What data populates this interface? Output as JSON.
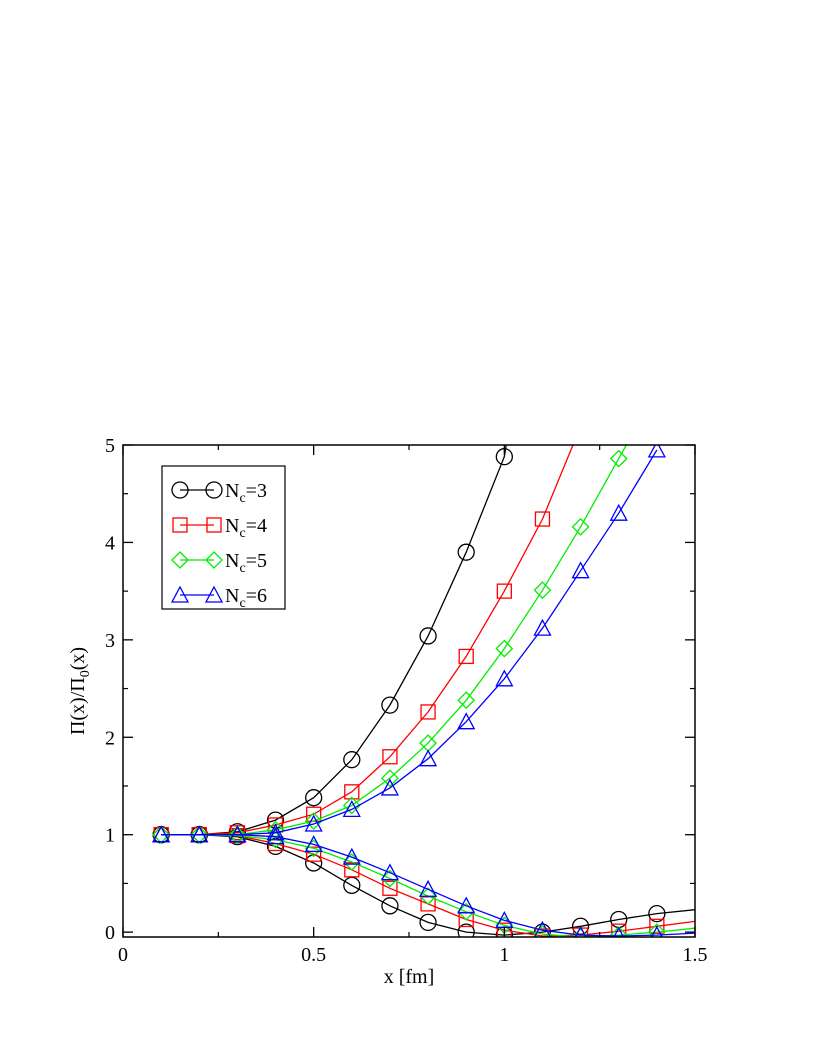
{
  "chart_data": {
    "type": "line",
    "title": "",
    "xlabel": "x [fm]",
    "ylabel": "Π(x)/Π0(x)",
    "ylabel_parts": {
      "main1": "Π(x)/Π",
      "sub": "0",
      "main2": "(x)"
    },
    "xlim": [
      0,
      1.5
    ],
    "ylim": [
      -0.05,
      5
    ],
    "x_ticks": [
      0,
      0.5,
      1,
      1.5
    ],
    "x_tick_labels": [
      "0",
      "0.5",
      "1",
      "1.5"
    ],
    "y_ticks": [
      0,
      1,
      2,
      3,
      4,
      5
    ],
    "y_tick_labels": [
      "0",
      "1",
      "2",
      "3",
      "4",
      "5"
    ],
    "legend_position": "top-left",
    "series": [
      {
        "name": "Nc=3",
        "label_main": "N",
        "label_sub": "c",
        "label_tail": "=3",
        "color": "#000000",
        "marker": "circle",
        "upper": {
          "x": [
            0.1,
            0.2,
            0.3,
            0.4,
            0.5,
            0.6,
            0.7,
            0.8,
            0.9,
            1.0,
            1.005
          ],
          "y": [
            1.0,
            1.0,
            1.03,
            1.15,
            1.38,
            1.77,
            2.33,
            3.04,
            3.9,
            4.88,
            5.0
          ],
          "marker_count": 10
        },
        "lower": {
          "x": [
            0.1,
            0.2,
            0.3,
            0.4,
            0.5,
            0.6,
            0.7,
            0.8,
            0.9,
            1.0,
            1.1,
            1.2,
            1.3,
            1.4,
            1.5
          ],
          "y": [
            1.0,
            1.0,
            0.98,
            0.88,
            0.71,
            0.48,
            0.27,
            0.1,
            0.0,
            -0.03,
            0.0,
            0.06,
            0.13,
            0.19,
            0.23
          ],
          "marker_count": 14
        }
      },
      {
        "name": "Nc=4",
        "label_main": "N",
        "label_sub": "c",
        "label_tail": "=4",
        "color": "#ff0000",
        "marker": "square",
        "upper": {
          "x": [
            0.1,
            0.2,
            0.3,
            0.4,
            0.5,
            0.6,
            0.7,
            0.8,
            0.9,
            1.0,
            1.1,
            1.18
          ],
          "y": [
            1.0,
            1.0,
            1.02,
            1.1,
            1.21,
            1.44,
            1.8,
            2.26,
            2.83,
            3.5,
            4.24,
            5.0
          ],
          "marker_count": 11
        },
        "lower": {
          "x": [
            0.1,
            0.2,
            0.3,
            0.4,
            0.5,
            0.6,
            0.7,
            0.8,
            0.9,
            1.0,
            1.1,
            1.2,
            1.3,
            1.4,
            1.5
          ],
          "y": [
            1.0,
            1.0,
            0.99,
            0.91,
            0.8,
            0.64,
            0.45,
            0.29,
            0.13,
            0.02,
            -0.04,
            -0.03,
            0.01,
            0.06,
            0.11
          ],
          "marker_count": 14
        }
      },
      {
        "name": "Nc=5",
        "label_main": "N",
        "label_sub": "c",
        "label_tail": "=5",
        "color": "#00ee00",
        "marker": "diamond",
        "upper": {
          "x": [
            0.1,
            0.2,
            0.3,
            0.4,
            0.5,
            0.6,
            0.7,
            0.8,
            0.9,
            1.0,
            1.1,
            1.2,
            1.3,
            1.32
          ],
          "y": [
            1.0,
            1.0,
            1.0,
            1.05,
            1.14,
            1.3,
            1.58,
            1.94,
            2.38,
            2.91,
            3.51,
            4.16,
            4.86,
            5.0
          ],
          "marker_count": 13
        },
        "lower": {
          "x": [
            0.1,
            0.2,
            0.3,
            0.4,
            0.5,
            0.6,
            0.7,
            0.8,
            0.9,
            1.0,
            1.1,
            1.2,
            1.3,
            1.4,
            1.5
          ],
          "y": [
            1.0,
            1.0,
            0.99,
            0.95,
            0.86,
            0.72,
            0.55,
            0.37,
            0.21,
            0.07,
            -0.02,
            -0.05,
            -0.03,
            0.0,
            0.04
          ],
          "marker_count": 14
        }
      },
      {
        "name": "Nc=6",
        "label_main": "N",
        "label_sub": "c",
        "label_tail": "=6",
        "color": "#0000ff",
        "marker": "triangle",
        "upper": {
          "x": [
            0.1,
            0.2,
            0.3,
            0.4,
            0.5,
            0.6,
            0.7,
            0.8,
            0.9,
            1.0,
            1.1,
            1.2,
            1.3,
            1.4
          ],
          "y": [
            1.0,
            1.0,
            1.0,
            1.02,
            1.11,
            1.26,
            1.48,
            1.78,
            2.16,
            2.6,
            3.12,
            3.71,
            4.3,
            4.95
          ],
          "marker_count": 14
        },
        "lower": {
          "x": [
            0.1,
            0.2,
            0.3,
            0.4,
            0.5,
            0.6,
            0.7,
            0.8,
            0.9,
            1.0,
            1.1,
            1.2,
            1.3,
            1.4,
            1.5
          ],
          "y": [
            1.0,
            1.0,
            1.0,
            0.98,
            0.9,
            0.77,
            0.61,
            0.44,
            0.27,
            0.12,
            0.02,
            -0.03,
            -0.04,
            -0.03,
            -0.01
          ],
          "marker_count": 14
        }
      }
    ]
  }
}
